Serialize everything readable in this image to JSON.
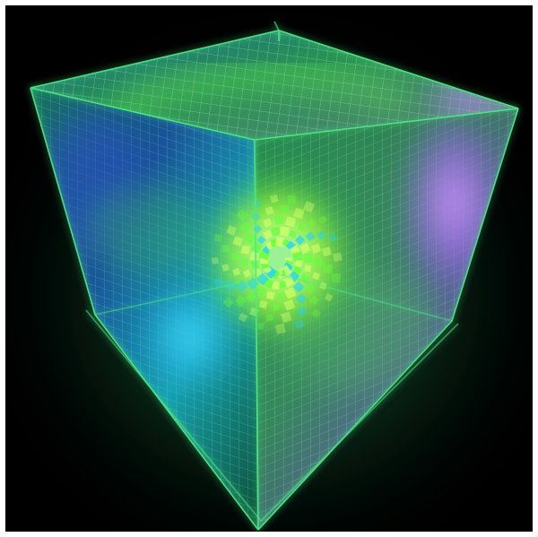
{
  "image": {
    "subject": "glowing-voxel-cube",
    "palette": {
      "background": "#000000",
      "page": "#ffffff",
      "frame_glow": "#43e07a",
      "voxel_green": "#63ff3a",
      "voxel_lime": "#d8ff6a",
      "voxel_cyan": "#1fd3ff",
      "voxel_blue": "#2c53d6",
      "voxel_violet": "#b27bff"
    }
  }
}
